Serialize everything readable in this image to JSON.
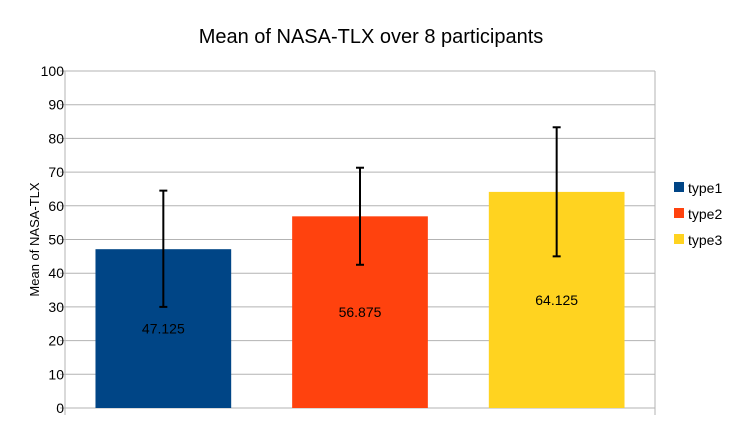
{
  "chart_data": {
    "type": "bar",
    "title": "Mean of NASA-TLX over 8 participants",
    "xlabel": "",
    "ylabel": "Mean of NASA-TLX",
    "ylim": [
      0,
      100
    ],
    "yticks": [
      0,
      10,
      20,
      30,
      40,
      50,
      60,
      70,
      80,
      90,
      100
    ],
    "grid": true,
    "legend_position": "right",
    "categories": [
      "type1",
      "type2",
      "type3"
    ],
    "values": [
      47.125,
      56.875,
      64.125
    ],
    "data_labels": [
      "47.125",
      "56.875",
      "64.125"
    ],
    "error_bars": [
      {
        "low": 30,
        "high": 64.5
      },
      {
        "low": 42.5,
        "high": 71.3
      },
      {
        "low": 45,
        "high": 83.3
      }
    ],
    "colors": [
      "#004586",
      "#ff420e",
      "#ffd320"
    ]
  }
}
